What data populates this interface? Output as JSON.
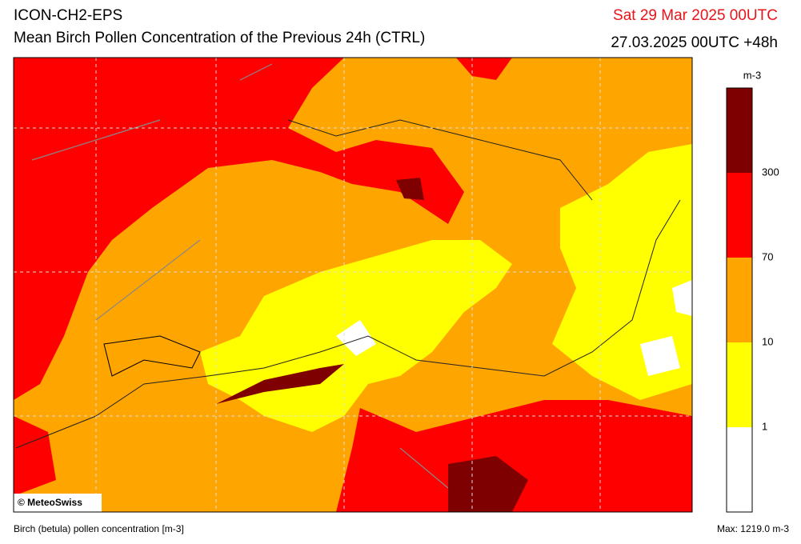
{
  "header": {
    "model": "ICON-CH2-EPS",
    "title": "Mean Birch Pollen Concentration of the Previous 24h (CTRL)",
    "valid_time": "Sat 29 Mar 2025 00UTC",
    "run": "27.03.2025 00UTC +48h"
  },
  "legend": {
    "unit": "m-3",
    "levels": [
      1,
      10,
      70,
      300
    ],
    "colors": [
      "#ffffff",
      "#ffff00",
      "#ffa500",
      "#ff0000",
      "#7f0000"
    ]
  },
  "map": {
    "copyright": "© MeteoSwiss"
  },
  "footer": {
    "variable": "Birch (betula) pollen concentration [m-3]",
    "max": "Max: 1219.0 m-3"
  }
}
